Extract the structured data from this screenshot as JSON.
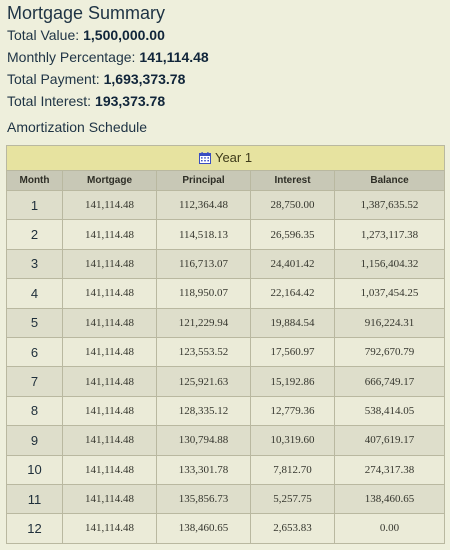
{
  "summary": {
    "title": "Mortgage Summary",
    "total_value_label": "Total Value:",
    "total_value": "1,500,000.00",
    "monthly_percentage_label": "Monthly Percentage:",
    "monthly_percentage": "141,114.48",
    "total_payment_label": "Total Payment:",
    "total_payment": "1,693,373.78",
    "total_interest_label": "Total Interest:",
    "total_interest": "193,373.78"
  },
  "schedule": {
    "title": "Amortization Schedule",
    "year_label": "Year 1",
    "year_icon": "calendar-icon",
    "columns": [
      "Month",
      "Mortgage",
      "Principal",
      "Interest",
      "Balance"
    ],
    "rows": [
      [
        "1",
        "141,114.48",
        "112,364.48",
        "28,750.00",
        "1,387,635.52"
      ],
      [
        "2",
        "141,114.48",
        "114,518.13",
        "26,596.35",
        "1,273,117.38"
      ],
      [
        "3",
        "141,114.48",
        "116,713.07",
        "24,401.42",
        "1,156,404.32"
      ],
      [
        "4",
        "141,114.48",
        "118,950.07",
        "22,164.42",
        "1,037,454.25"
      ],
      [
        "5",
        "141,114.48",
        "121,229.94",
        "19,884.54",
        "916,224.31"
      ],
      [
        "6",
        "141,114.48",
        "123,553.52",
        "17,560.97",
        "792,670.79"
      ],
      [
        "7",
        "141,114.48",
        "125,921.63",
        "15,192.86",
        "666,749.17"
      ],
      [
        "8",
        "141,114.48",
        "128,335.12",
        "12,779.36",
        "538,414.05"
      ],
      [
        "9",
        "141,114.48",
        "130,794.88",
        "10,319.60",
        "407,619.17"
      ],
      [
        "10",
        "141,114.48",
        "133,301.78",
        "7,812.70",
        "274,317.38"
      ],
      [
        "11",
        "141,114.48",
        "135,856.73",
        "5,257.75",
        "138,460.65"
      ],
      [
        "12",
        "141,114.48",
        "138,460.65",
        "2,653.83",
        "0.00"
      ]
    ]
  },
  "colors": {
    "background": "#eeefdc",
    "year_header": "#e7e3a0",
    "column_header": "#c8c8b6",
    "row_odd": "#dedecb",
    "row_even": "#ebebd8",
    "icon": "#3a4ec2"
  }
}
